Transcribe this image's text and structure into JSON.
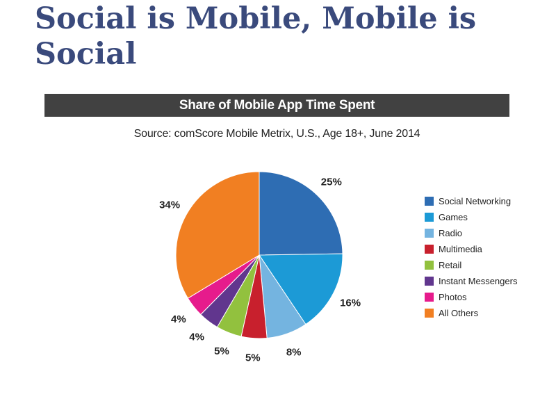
{
  "slide": {
    "title": "Social is Mobile, Mobile is Social"
  },
  "chart_data": {
    "type": "pie",
    "title": "Share of Mobile App Time Spent",
    "subtitle": "Source: comScore Mobile Metrix, U.S., Age 18+, June 2014",
    "legend_position": "right",
    "slices": [
      {
        "name": "Social Networking",
        "value": 25,
        "label": "25%",
        "color": "#2e6db3"
      },
      {
        "name": "Games",
        "value": 16,
        "label": "16%",
        "color": "#1c9ad6"
      },
      {
        "name": "Radio",
        "value": 8,
        "label": "8%",
        "color": "#74b4e0"
      },
      {
        "name": "Multimedia",
        "value": 5,
        "label": "5%",
        "color": "#c8202d"
      },
      {
        "name": "Retail",
        "value": 5,
        "label": "5%",
        "color": "#92c13e"
      },
      {
        "name": "Instant Messengers",
        "value": 4,
        "label": "4%",
        "color": "#61368e"
      },
      {
        "name": "Photos",
        "value": 4,
        "label": "4%",
        "color": "#e61b8c"
      },
      {
        "name": "All Others",
        "value": 34,
        "label": "34%",
        "color": "#f17f22"
      }
    ]
  }
}
